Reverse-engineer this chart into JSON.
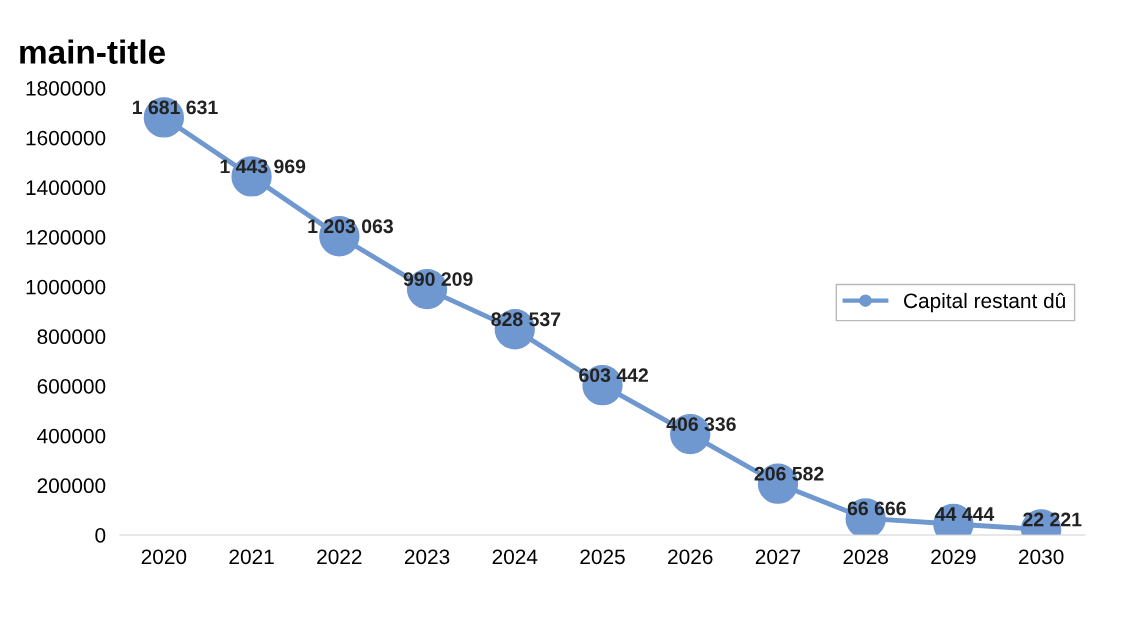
{
  "chart_data": {
    "type": "line",
    "title": "main-title",
    "categories": [
      "2020",
      "2021",
      "2022",
      "2023",
      "2024",
      "2025",
      "2026",
      "2027",
      "2028",
      "2029",
      "2030"
    ],
    "series": [
      {
        "name": "Capital restant dû",
        "color": "#6f97d0",
        "values": [
          1681631,
          1443969,
          1203063,
          990209,
          828537,
          603442,
          406336,
          206582,
          66666,
          44444,
          22221
        ],
        "value_labels": [
          "1 681 631",
          "1 443 969",
          "1 203 063",
          "990 209",
          "828 537",
          "603 442",
          "406 336",
          "206 582",
          "66 666",
          "44 444",
          "22 221"
        ]
      }
    ],
    "ylim": [
      0,
      1800000
    ],
    "yticks": [
      0,
      200000,
      400000,
      600000,
      800000,
      1000000,
      1200000,
      1400000,
      1600000,
      1800000
    ],
    "grid": false,
    "legend": "right",
    "marker": "circle",
    "line_style": "solid"
  }
}
